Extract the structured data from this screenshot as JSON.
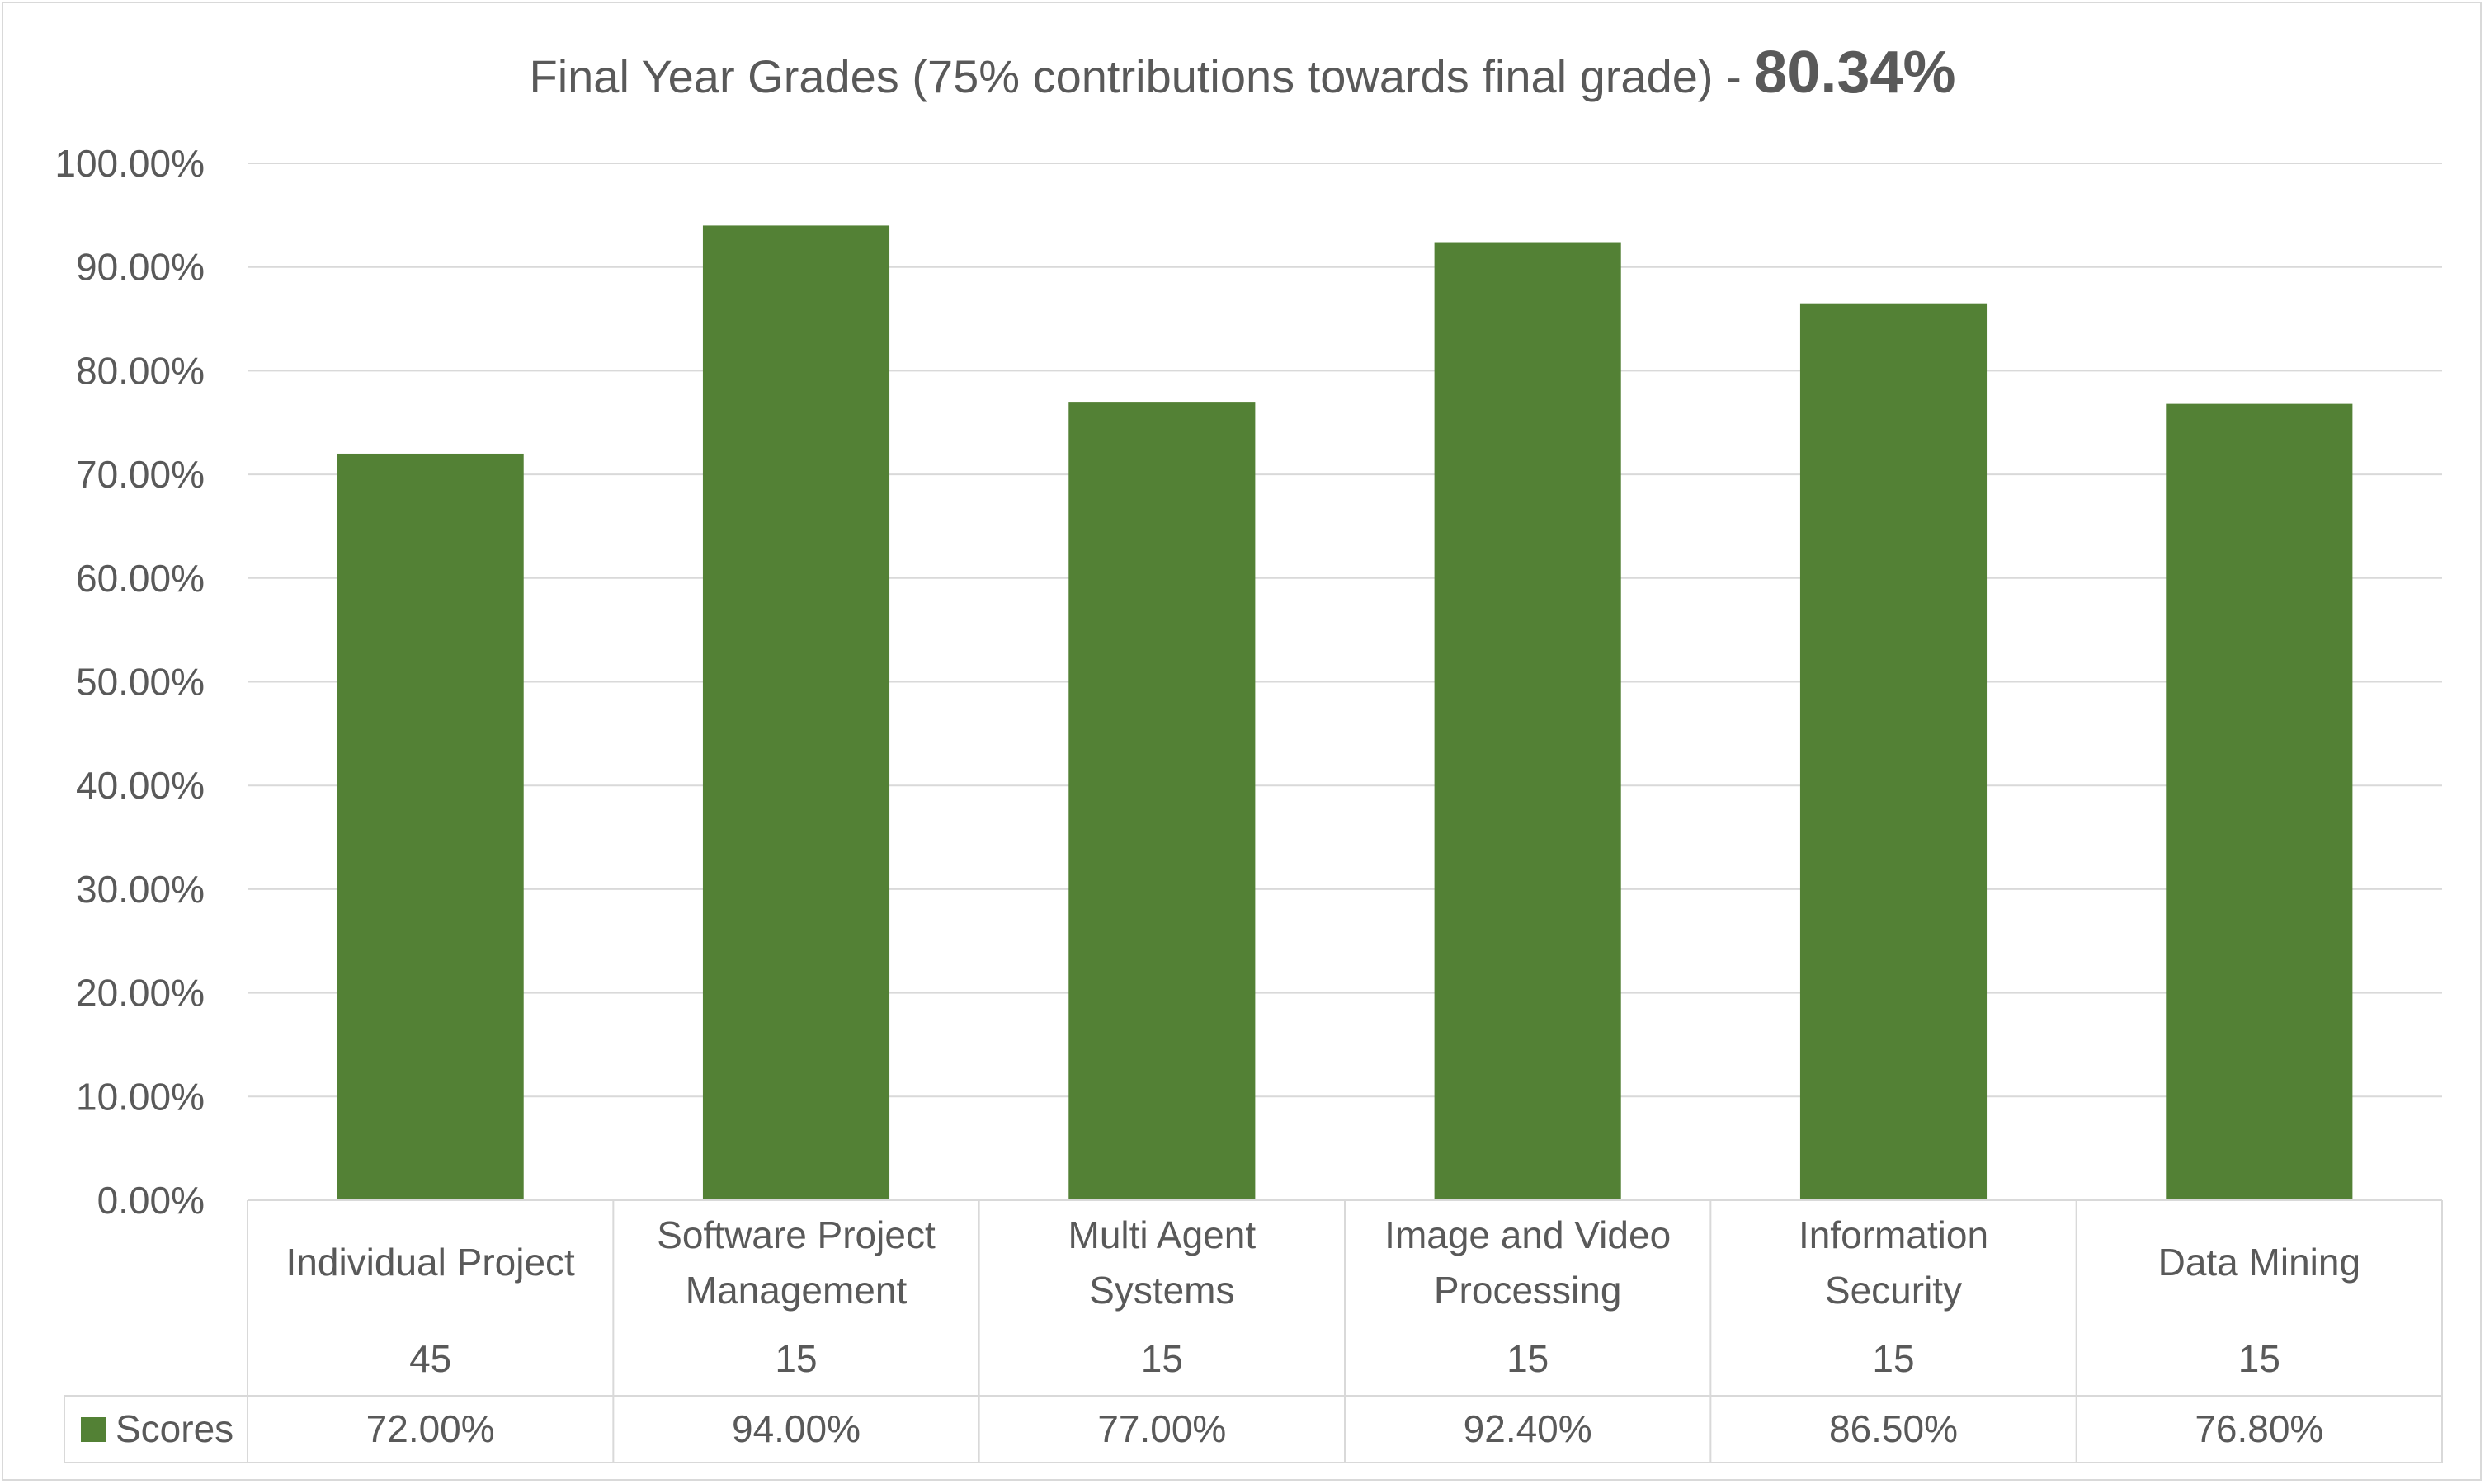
{
  "colors": {
    "bar": "#538135",
    "grid": "#d9d9d9",
    "text": "#595959"
  },
  "chart_data": {
    "type": "bar",
    "title": "Final Year Grades (75% contributions towards final grade) - ",
    "title_value": "80.34%",
    "categories": [
      [
        "Individual Project"
      ],
      [
        "Software Project",
        "Management"
      ],
      [
        "Multi Agent",
        "Systems"
      ],
      [
        "Image and Video",
        "Processing"
      ],
      [
        "Information",
        "Security"
      ],
      [
        "Data Mining"
      ]
    ],
    "credits": [
      "45",
      "15",
      "15",
      "15",
      "15",
      "15"
    ],
    "series": [
      {
        "name": "Scores",
        "values": [
          72.0,
          94.0,
          77.0,
          92.4,
          86.5,
          76.8
        ]
      }
    ],
    "value_labels": [
      "72.00%",
      "94.00%",
      "77.00%",
      "92.40%",
      "86.50%",
      "76.80%"
    ],
    "y_ticks": [
      "0.00%",
      "10.00%",
      "20.00%",
      "30.00%",
      "40.00%",
      "50.00%",
      "60.00%",
      "70.00%",
      "80.00%",
      "90.00%",
      "100.00%"
    ],
    "ylim": [
      0,
      100
    ],
    "grid": true,
    "legend": "data-table"
  }
}
